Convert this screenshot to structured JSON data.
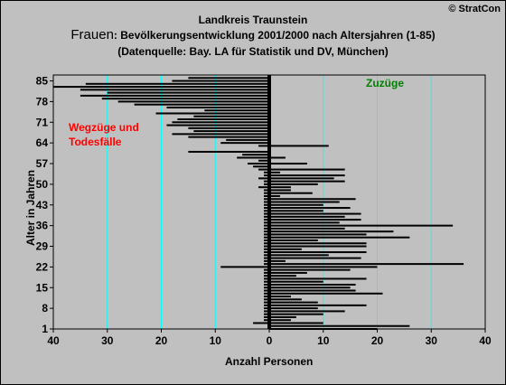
{
  "header": {
    "district": "Landkreis Traunstein",
    "title_prefix": "Frauen",
    "title_rest": ": Bevölkerungsentwicklung 2001/2000  nach Altersjahren (1-85)",
    "source": "(Datenquelle: Bay. LA für Statistik und DV, München)",
    "copyright": "© StratCon"
  },
  "annotations": {
    "out_line1": "Wegzüge und",
    "out_line2": "Todesfälle",
    "in_label": "Zuzüge"
  },
  "colors": {
    "background": "#c0c0c0",
    "gridline": "#00ffff",
    "bars": "#000000",
    "out_label": "#ff0000",
    "in_label": "#008000"
  },
  "chart_data": {
    "type": "bar",
    "orientation": "horizontal",
    "xlabel": "Anzahl Personen",
    "ylabel": "Alter in Jahren",
    "xlim": [
      -40,
      40
    ],
    "ylim": [
      1,
      87
    ],
    "x_ticks": [
      -40,
      -30,
      -20,
      -10,
      0,
      10,
      20,
      30,
      40
    ],
    "x_tick_labels": [
      "40",
      "30",
      "20",
      "10",
      "0",
      "10",
      "20",
      "30",
      "40"
    ],
    "y_ticks": [
      1,
      8,
      15,
      22,
      29,
      36,
      43,
      50,
      57,
      64,
      71,
      78,
      85
    ],
    "grid": true,
    "series": [
      {
        "ages": [
          86,
          85,
          84,
          83,
          82,
          81,
          80,
          79,
          78,
          77,
          76,
          75,
          74,
          73,
          72,
          71,
          70,
          69,
          68,
          67,
          66,
          65,
          64,
          63,
          62,
          61,
          60,
          59,
          58,
          57,
          56,
          55,
          54,
          53,
          52,
          51,
          50,
          49,
          48,
          47,
          46,
          45,
          44,
          43,
          42,
          41,
          40,
          39,
          38,
          37,
          36,
          35,
          34,
          33,
          32,
          31,
          30,
          29,
          28,
          27,
          26,
          25,
          24,
          23,
          22,
          21,
          20,
          19,
          18,
          17,
          16,
          15,
          14,
          13,
          12,
          11,
          10,
          9,
          8,
          7,
          6,
          5,
          4,
          3,
          2,
          1
        ],
        "values": [
          -15,
          -18,
          -34,
          -40,
          -35,
          -30,
          -35,
          -31,
          -28,
          -25,
          -19,
          -12,
          -21,
          -14,
          -17,
          -18,
          -19,
          -15,
          -14,
          -18,
          -15,
          -8,
          -9,
          -2,
          0,
          -15,
          -5,
          -6,
          -2,
          -4,
          -3,
          -2,
          -1,
          -1,
          -2,
          -1,
          -1,
          -2,
          -1,
          -1,
          -1,
          -1,
          -1,
          -1,
          -1,
          -1,
          -1,
          -1,
          -1,
          -1,
          -1,
          -1,
          -1,
          -1,
          -1,
          -1,
          -1,
          -1,
          -1,
          -1,
          -1,
          -1,
          -1,
          -1,
          -9,
          -1,
          -1,
          -1,
          -1,
          -1,
          -1,
          -1,
          -1,
          -1,
          -1,
          -1,
          -1,
          -1,
          -1,
          -1,
          -1,
          -1,
          -1,
          -3,
          0,
          0
        ]
      },
      {
        "ages": [
          86,
          85,
          84,
          83,
          82,
          81,
          80,
          79,
          78,
          77,
          76,
          75,
          74,
          73,
          72,
          71,
          70,
          69,
          68,
          67,
          66,
          65,
          64,
          63,
          62,
          61,
          60,
          59,
          58,
          57,
          56,
          55,
          54,
          53,
          52,
          51,
          50,
          49,
          48,
          47,
          46,
          45,
          44,
          43,
          42,
          41,
          40,
          39,
          38,
          37,
          36,
          35,
          34,
          33,
          32,
          31,
          30,
          29,
          28,
          27,
          26,
          25,
          24,
          23,
          22,
          21,
          20,
          19,
          18,
          17,
          16,
          15,
          14,
          13,
          12,
          11,
          10,
          9,
          8,
          7,
          6,
          5,
          4,
          3,
          2,
          1
        ],
        "values": [
          0,
          0,
          0,
          0,
          0,
          0,
          0,
          0,
          0,
          0,
          0,
          0,
          0,
          0,
          0,
          0,
          0,
          0,
          0,
          0,
          0,
          0,
          0,
          11,
          0,
          0,
          0,
          3,
          0,
          7,
          0,
          14,
          2,
          14,
          12,
          14,
          9,
          4,
          4,
          8,
          2,
          16,
          13,
          10,
          15,
          10,
          17,
          14,
          17,
          13,
          34,
          14,
          23,
          18,
          26,
          9,
          18,
          18,
          6,
          18,
          11,
          17,
          3,
          36,
          20,
          15,
          7,
          5,
          18,
          10,
          16,
          15,
          16,
          21,
          4,
          6,
          9,
          18,
          9,
          14,
          10,
          5,
          4,
          10,
          26,
          20
        ]
      }
    ]
  }
}
